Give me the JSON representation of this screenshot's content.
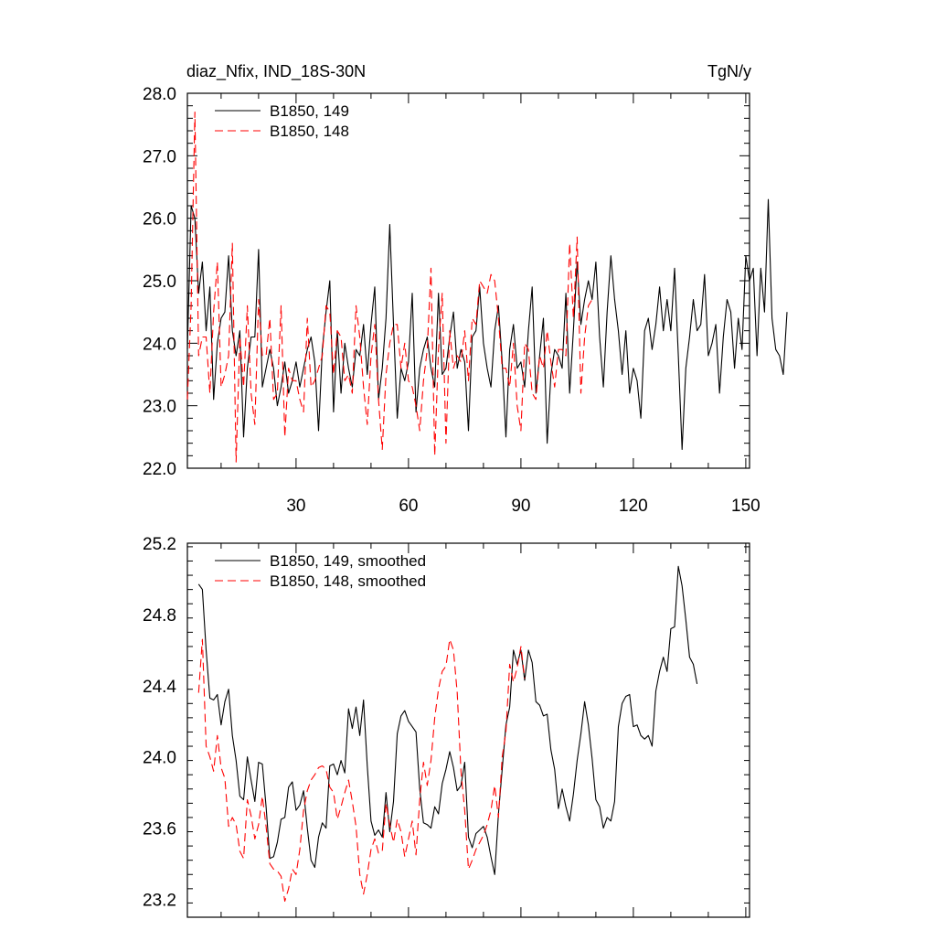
{
  "colors": {
    "series_149": "#000000",
    "series_148": "#ff0000",
    "axes": "#000000",
    "background": "#ffffff"
  },
  "chart_data": [
    {
      "type": "line",
      "title": "diaz_Nfix, IND_18S-30N",
      "units": "TgN/y",
      "xlabel": "",
      "ylabel": "",
      "xlim": [
        1,
        151
      ],
      "ylim": [
        22.0,
        28.0
      ],
      "xticks": [
        "30",
        "60",
        "90",
        "120",
        "150"
      ],
      "yticks": [
        "22.0",
        "23.0",
        "24.0",
        "25.0",
        "26.0",
        "27.0",
        "28.0"
      ],
      "legend_position": "top-left",
      "grid": false,
      "series": [
        {
          "name": "B1850, 149",
          "style": "solid",
          "x_start": 1,
          "values": [
            23.9,
            26.2,
            26.0,
            24.8,
            25.3,
            24.2,
            24.9,
            23.1,
            24.0,
            24.4,
            24.5,
            25.4,
            24.2,
            23.8,
            24.2,
            22.5,
            23.6,
            24.1,
            24.1,
            25.5,
            23.3,
            23.6,
            23.9,
            23.6,
            23.0,
            23.3,
            23.7,
            23.2,
            23.4,
            23.7,
            23.3,
            23.6,
            23.9,
            24.1,
            23.7,
            22.6,
            23.9,
            24.5,
            25.0,
            22.9,
            24.2,
            23.2,
            24.0,
            23.6,
            23.3,
            23.9,
            23.8,
            24.3,
            23.5,
            24.3,
            24.9,
            23.1,
            23.6,
            24.4,
            25.9,
            24.3,
            22.8,
            23.6,
            23.4,
            23.7,
            24.8,
            22.9,
            23.6,
            23.9,
            24.1,
            23.6,
            23.3,
            24.8,
            23.5,
            23.6,
            24.1,
            24.5,
            23.6,
            23.9,
            23.7,
            22.6,
            24.1,
            24.2,
            24.9,
            24.0,
            23.6,
            23.3,
            24.2,
            24.6,
            23.7,
            22.5,
            23.9,
            24.3,
            23.6,
            23.7,
            23.3,
            24.2,
            24.9,
            23.2,
            23.8,
            24.4,
            22.4,
            23.5,
            23.9,
            23.8,
            23.6,
            24.8,
            23.2,
            24.2,
            25.3,
            24.3,
            24.7,
            25.0,
            24.7,
            25.3,
            24.1,
            23.3,
            24.5,
            25.4,
            24.7,
            24.2,
            23.5,
            24.2,
            23.2,
            23.6,
            23.4,
            22.8,
            24.2,
            24.4,
            23.9,
            24.3,
            24.9,
            24.2,
            24.7,
            24.2,
            25.2,
            23.8,
            22.3,
            23.6,
            24.1,
            24.7,
            24.2,
            24.3,
            25.1,
            23.8,
            24.0,
            24.3,
            23.2,
            24.1,
            24.7,
            24.5,
            23.6,
            24.4,
            23.9,
            25.4,
            25.0,
            25.2,
            23.8,
            25.2,
            24.5,
            26.3,
            24.4,
            23.9,
            23.8,
            23.5,
            24.5
          ]
        },
        {
          "name": "B1850, 148",
          "style": "dashed",
          "x_start": 1,
          "values": [
            23.1,
            24.6,
            27.7,
            23.8,
            24.1,
            24.1,
            23.2,
            24.5,
            25.3,
            23.3,
            23.5,
            23.8,
            25.6,
            22.1,
            24.1,
            23.3,
            24.6,
            23.2,
            22.7,
            24.7,
            23.8,
            23.8,
            24.4,
            23.1,
            23.2,
            24.6,
            22.5,
            23.6,
            23.4,
            23.4,
            23.1,
            22.9,
            24.4,
            23.3,
            23.4,
            23.6,
            23.8,
            24.6,
            24.5,
            23.5,
            24.2,
            24.1,
            23.4,
            23.5,
            23.2,
            24.6,
            24.1,
            23.3,
            22.7,
            23.8,
            24.3,
            23.1,
            22.3,
            23.5,
            24.0,
            24.3,
            24.3,
            23.6,
            24.0,
            23.4,
            23.3,
            23.0,
            22.6,
            23.4,
            23.9,
            25.2,
            22.2,
            23.9,
            24.8,
            22.4,
            24.2,
            23.6,
            23.8,
            23.7,
            24.2,
            23.4,
            24.4,
            24.3,
            25.0,
            24.9,
            24.8,
            25.1,
            25.0,
            24.4,
            23.6,
            23.6,
            23.3,
            24.0,
            23.0,
            22.6,
            24.0,
            23.9,
            23.2,
            23.1,
            23.8,
            23.6,
            24.2,
            23.7,
            23.3,
            23.9,
            23.9,
            23.8,
            25.6,
            24.4,
            25.7,
            23.2,
            24.1,
            24.6,
            24.7
          ]
        }
      ]
    },
    {
      "type": "line",
      "title": "",
      "xlabel": "",
      "ylabel": "",
      "xlim": [
        1,
        151
      ],
      "ylim": [
        23.1,
        25.2
      ],
      "yticks": [
        "23.2",
        "23.6",
        "24.0",
        "24.4",
        "24.8",
        "25.2"
      ],
      "legend_position": "top-left",
      "grid": false,
      "series": [
        {
          "name": "B1850, 149, smoothed",
          "style": "solid",
          "x_start": 4,
          "values": [
            24.97,
            24.94,
            24.6,
            24.33,
            24.32,
            24.35,
            24.18,
            24.31,
            24.38,
            24.12,
            23.98,
            23.78,
            23.76,
            24.0,
            23.87,
            23.75,
            23.97,
            23.96,
            23.72,
            23.43,
            23.44,
            23.52,
            23.65,
            23.66,
            23.83,
            23.86,
            23.7,
            23.73,
            23.81,
            23.6,
            23.42,
            23.38,
            23.55,
            23.63,
            23.6,
            23.95,
            23.96,
            23.9,
            23.98,
            23.91,
            24.27,
            24.16,
            24.28,
            24.12,
            24.32,
            23.95,
            23.64,
            23.56,
            23.59,
            23.55,
            23.8,
            23.58,
            23.75,
            24.13,
            24.23,
            24.26,
            24.2,
            24.17,
            24.14,
            23.82,
            23.63,
            23.62,
            23.6,
            23.72,
            23.68,
            23.85,
            23.93,
            24.03,
            23.94,
            23.81,
            23.84,
            23.97,
            23.55,
            23.49,
            23.57,
            23.59,
            23.61,
            23.55,
            23.44,
            23.34,
            23.68,
            23.93,
            24.18,
            24.28,
            24.6,
            24.52,
            24.6,
            24.43,
            24.6,
            24.53,
            24.31,
            24.29,
            24.23,
            24.24,
            24.04,
            23.93,
            23.71,
            23.82,
            23.72,
            23.64,
            23.79,
            23.98,
            24.13,
            24.31,
            24.18,
            23.99,
            23.76,
            23.72,
            23.6,
            23.66,
            23.64,
            23.75,
            24.17,
            24.3,
            24.34,
            24.35,
            24.17,
            24.18,
            24.12,
            24.1,
            24.12,
            24.06,
            24.37,
            24.48,
            24.56,
            24.48,
            24.72,
            24.73,
            25.07,
            24.96,
            24.77,
            24.56,
            24.52,
            24.41
          ]
        },
        {
          "name": "B1850, 148, smoothed",
          "style": "dashed",
          "x_start": 4,
          "values": [
            24.36,
            24.66,
            24.06,
            24.0,
            23.92,
            24.12,
            23.94,
            23.88,
            23.61,
            23.66,
            23.62,
            23.47,
            23.43,
            23.76,
            23.67,
            23.54,
            23.62,
            23.78,
            23.61,
            23.4,
            23.37,
            23.36,
            23.33,
            23.19,
            23.26,
            23.37,
            23.34,
            23.48,
            23.7,
            23.81,
            23.87,
            23.9,
            23.94,
            23.95,
            23.93,
            23.83,
            23.8,
            23.65,
            23.72,
            23.8,
            23.87,
            23.75,
            23.61,
            23.34,
            23.23,
            23.34,
            23.48,
            23.54,
            23.46,
            23.47,
            23.74,
            23.62,
            23.52,
            23.65,
            23.58,
            23.44,
            23.54,
            23.64,
            23.45,
            23.76,
            23.97,
            23.84,
            23.98,
            24.22,
            24.38,
            24.48,
            24.51,
            24.66,
            24.6,
            24.36,
            23.92,
            23.7,
            23.37,
            23.42,
            23.48,
            23.52,
            23.56,
            23.62,
            23.7,
            23.84,
            23.66,
            24.0,
            24.14,
            24.52,
            24.42,
            24.5,
            24.62,
            24.44
          ]
        }
      ]
    }
  ]
}
